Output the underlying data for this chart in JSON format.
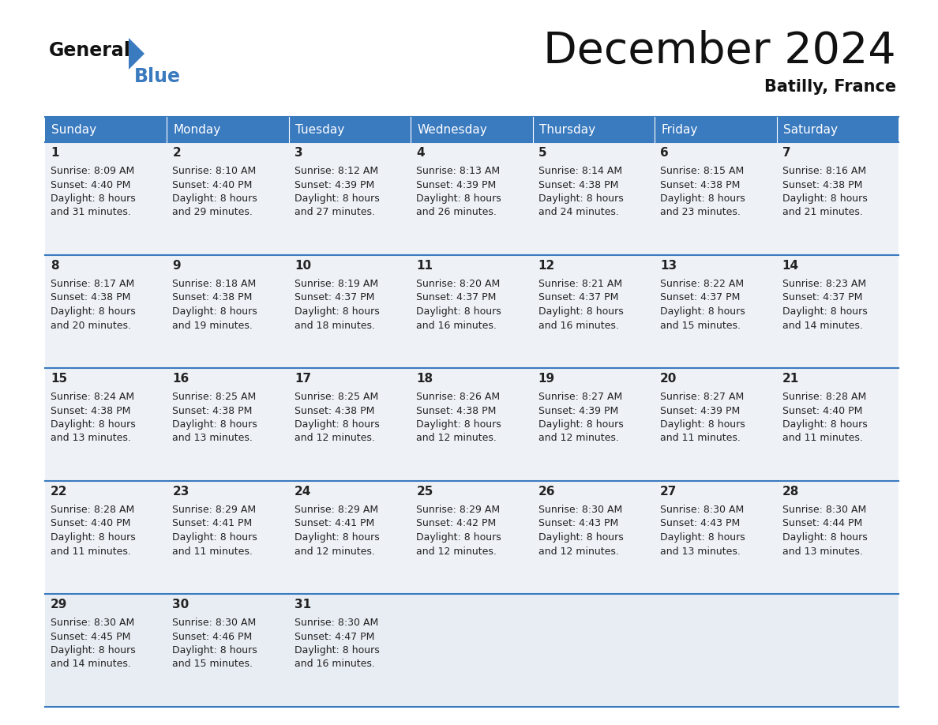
{
  "title": "December 2024",
  "subtitle": "Batilly, France",
  "header_color": "#3a7abf",
  "header_text_color": "#ffffff",
  "cell_bg_even": "#eef2f7",
  "cell_bg_odd": "#eef2f7",
  "last_row_bg": "#e8edf3",
  "border_color": "#3a7abf",
  "text_color": "#222222",
  "days_of_week": [
    "Sunday",
    "Monday",
    "Tuesday",
    "Wednesday",
    "Thursday",
    "Friday",
    "Saturday"
  ],
  "calendar_data": [
    [
      {
        "day": 1,
        "sunrise": "8:09 AM",
        "sunset": "4:40 PM",
        "daylight": "8 hours and 31 minutes"
      },
      {
        "day": 2,
        "sunrise": "8:10 AM",
        "sunset": "4:40 PM",
        "daylight": "8 hours and 29 minutes"
      },
      {
        "day": 3,
        "sunrise": "8:12 AM",
        "sunset": "4:39 PM",
        "daylight": "8 hours and 27 minutes"
      },
      {
        "day": 4,
        "sunrise": "8:13 AM",
        "sunset": "4:39 PM",
        "daylight": "8 hours and 26 minutes"
      },
      {
        "day": 5,
        "sunrise": "8:14 AM",
        "sunset": "4:38 PM",
        "daylight": "8 hours and 24 minutes"
      },
      {
        "day": 6,
        "sunrise": "8:15 AM",
        "sunset": "4:38 PM",
        "daylight": "8 hours and 23 minutes"
      },
      {
        "day": 7,
        "sunrise": "8:16 AM",
        "sunset": "4:38 PM",
        "daylight": "8 hours and 21 minutes"
      }
    ],
    [
      {
        "day": 8,
        "sunrise": "8:17 AM",
        "sunset": "4:38 PM",
        "daylight": "8 hours and 20 minutes"
      },
      {
        "day": 9,
        "sunrise": "8:18 AM",
        "sunset": "4:38 PM",
        "daylight": "8 hours and 19 minutes"
      },
      {
        "day": 10,
        "sunrise": "8:19 AM",
        "sunset": "4:37 PM",
        "daylight": "8 hours and 18 minutes"
      },
      {
        "day": 11,
        "sunrise": "8:20 AM",
        "sunset": "4:37 PM",
        "daylight": "8 hours and 16 minutes"
      },
      {
        "day": 12,
        "sunrise": "8:21 AM",
        "sunset": "4:37 PM",
        "daylight": "8 hours and 16 minutes"
      },
      {
        "day": 13,
        "sunrise": "8:22 AM",
        "sunset": "4:37 PM",
        "daylight": "8 hours and 15 minutes"
      },
      {
        "day": 14,
        "sunrise": "8:23 AM",
        "sunset": "4:37 PM",
        "daylight": "8 hours and 14 minutes"
      }
    ],
    [
      {
        "day": 15,
        "sunrise": "8:24 AM",
        "sunset": "4:38 PM",
        "daylight": "8 hours and 13 minutes"
      },
      {
        "day": 16,
        "sunrise": "8:25 AM",
        "sunset": "4:38 PM",
        "daylight": "8 hours and 13 minutes"
      },
      {
        "day": 17,
        "sunrise": "8:25 AM",
        "sunset": "4:38 PM",
        "daylight": "8 hours and 12 minutes"
      },
      {
        "day": 18,
        "sunrise": "8:26 AM",
        "sunset": "4:38 PM",
        "daylight": "8 hours and 12 minutes"
      },
      {
        "day": 19,
        "sunrise": "8:27 AM",
        "sunset": "4:39 PM",
        "daylight": "8 hours and 12 minutes"
      },
      {
        "day": 20,
        "sunrise": "8:27 AM",
        "sunset": "4:39 PM",
        "daylight": "8 hours and 11 minutes"
      },
      {
        "day": 21,
        "sunrise": "8:28 AM",
        "sunset": "4:40 PM",
        "daylight": "8 hours and 11 minutes"
      }
    ],
    [
      {
        "day": 22,
        "sunrise": "8:28 AM",
        "sunset": "4:40 PM",
        "daylight": "8 hours and 11 minutes"
      },
      {
        "day": 23,
        "sunrise": "8:29 AM",
        "sunset": "4:41 PM",
        "daylight": "8 hours and 11 minutes"
      },
      {
        "day": 24,
        "sunrise": "8:29 AM",
        "sunset": "4:41 PM",
        "daylight": "8 hours and 12 minutes"
      },
      {
        "day": 25,
        "sunrise": "8:29 AM",
        "sunset": "4:42 PM",
        "daylight": "8 hours and 12 minutes"
      },
      {
        "day": 26,
        "sunrise": "8:30 AM",
        "sunset": "4:43 PM",
        "daylight": "8 hours and 12 minutes"
      },
      {
        "day": 27,
        "sunrise": "8:30 AM",
        "sunset": "4:43 PM",
        "daylight": "8 hours and 13 minutes"
      },
      {
        "day": 28,
        "sunrise": "8:30 AM",
        "sunset": "4:44 PM",
        "daylight": "8 hours and 13 minutes"
      }
    ],
    [
      {
        "day": 29,
        "sunrise": "8:30 AM",
        "sunset": "4:45 PM",
        "daylight": "8 hours and 14 minutes"
      },
      {
        "day": 30,
        "sunrise": "8:30 AM",
        "sunset": "4:46 PM",
        "daylight": "8 hours and 15 minutes"
      },
      {
        "day": 31,
        "sunrise": "8:30 AM",
        "sunset": "4:47 PM",
        "daylight": "8 hours and 16 minutes"
      },
      null,
      null,
      null,
      null
    ]
  ]
}
